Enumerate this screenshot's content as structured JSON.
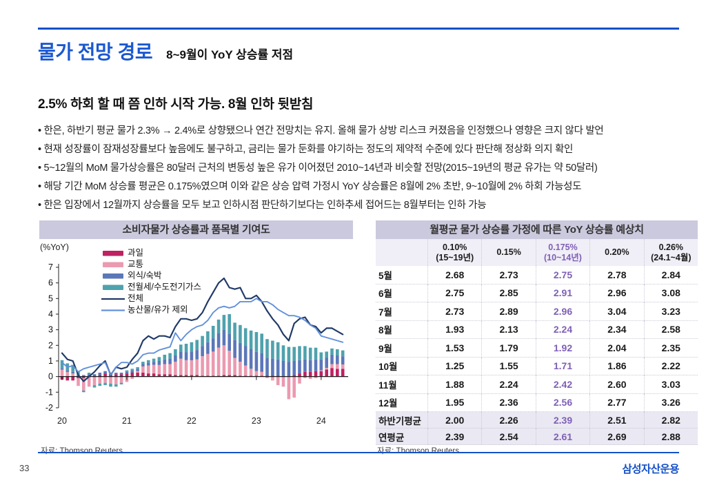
{
  "header": {
    "title": "물가 전망 경로",
    "subtitle": "8~9월이 YoY 상승률 저점"
  },
  "body": {
    "heading": "2.5% 하회 할 때 쯤 인하 시작 가능. 8월 인하 뒷받침",
    "bullets": [
      "한은, 하반기 평균 물가 2.3% → 2.4%로 상향됐으나 연간 전망치는 유지. 올해 물가 상방 리스크 커졌음을 인정했으나 영향은 크지 않다 발언",
      "현재 성장률이 잠재성장률보다 높음에도 불구하고, 금리는 물가 둔화를 야기하는 정도의 제약적 수준에 있다 판단해 정상화 의지 확인",
      "5~12월의 MoM 물가상승률은 80달러 근처의 변동성 높은 유가 이어졌던 2010~14년과 비슷할 전망(2015~19년의 평균 유가는 약 50달러)",
      "해당 기간 MoM 상승률 평균은 0.175%였으며 이와 같은 상승 압력 가정시 YoY 상승률은 8월에 2% 초반, 9~10월에 2% 하회 가능성도",
      "한은 입장에서 12월까지 상승률을 모두 보고 인하시점 판단하기보다는 인하추세 접어드는 8월부터는 인하 가능"
    ]
  },
  "chart": {
    "title": "소비자물가 상승률과 품목별 기여도",
    "unit_label": "(%YoY)",
    "source": "자료: Thomson Reuters"
  },
  "chart_data": {
    "type": "combo-stacked-bar-line",
    "x_monthly_start": "2020-01",
    "x_tick_labels": [
      "20",
      "21",
      "22",
      "23",
      "24"
    ],
    "ylim": [
      -2,
      7
    ],
    "y_ticks": [
      7,
      6,
      5,
      4,
      3,
      2,
      1,
      0,
      -1,
      -2
    ],
    "grid": false,
    "legend_position": "upper-left",
    "bar_series": [
      {
        "name": "과일",
        "color": "#bf2162",
        "values": [
          -0.2,
          -0.25,
          -0.25,
          -0.1,
          -0.1,
          0.05,
          0.05,
          0.1,
          0.2,
          0.15,
          0.15,
          0.15,
          0.2,
          0.25,
          0.25,
          0.25,
          0.2,
          0.2,
          0.15,
          0.15,
          0.15,
          0.1,
          0.1,
          0.1,
          0.1,
          0.1,
          0.05,
          0.05,
          0.05,
          0.05,
          0.1,
          0.1,
          0.1,
          0.05,
          0.05,
          0.05,
          0.05,
          0.05,
          0.05,
          0.05,
          0.05,
          0,
          0,
          0.1,
          0.2,
          0.3,
          0.3,
          0.35,
          0.35,
          0.45,
          0.55,
          0.5,
          0.5
        ]
      },
      {
        "name": "교통",
        "color": "#eb9ab0",
        "values": [
          0.45,
          0.3,
          0.2,
          -0.5,
          -0.8,
          -0.65,
          -0.55,
          -0.45,
          -0.4,
          -0.45,
          -0.5,
          -0.4,
          -0.35,
          -0.15,
          0.1,
          0.4,
          0.5,
          0.55,
          0.6,
          0.65,
          0.65,
          0.85,
          1.05,
          0.95,
          0.95,
          1.0,
          1.25,
          1.4,
          1.55,
          1.8,
          1.9,
          1.55,
          1.1,
          0.9,
          0.65,
          0.45,
          0.3,
          0.25,
          -0.1,
          -0.25,
          -0.55,
          -0.65,
          -1.45,
          -1.35,
          -0.45,
          -0.1,
          -0.15,
          -0.1,
          0.05,
          0.1,
          0.25,
          0.3,
          0.28
        ]
      },
      {
        "name": "외식/숙박",
        "color": "#5c77b9",
        "values": [
          0.1,
          0.1,
          0.1,
          0.1,
          0.1,
          0.1,
          0.1,
          0.15,
          0.15,
          0.1,
          0.1,
          0.1,
          0.1,
          0.15,
          0.15,
          0.15,
          0.2,
          0.2,
          0.25,
          0.3,
          0.35,
          0.4,
          0.45,
          0.5,
          0.55,
          0.6,
          0.65,
          0.75,
          0.85,
          0.95,
          1.0,
          1.1,
          1.15,
          1.2,
          1.25,
          1.25,
          1.25,
          1.2,
          1.15,
          1.1,
          1.05,
          1.0,
          0.95,
          0.9,
          0.85,
          0.8,
          0.75,
          0.75,
          0.7,
          0.65,
          0.6,
          0.55,
          0.52
        ]
      },
      {
        "name": "전월세/수도전기가스",
        "color": "#4fa2ad",
        "values": [
          0.5,
          0.45,
          0.45,
          0.2,
          -0.1,
          0.1,
          -0.15,
          -0.15,
          -0.15,
          -0.2,
          -0.15,
          -0.1,
          0.1,
          0.1,
          0.1,
          0.15,
          0.15,
          0.2,
          0.25,
          0.3,
          0.35,
          0.4,
          0.45,
          0.55,
          0.6,
          0.65,
          0.65,
          0.7,
          0.8,
          0.85,
          0.95,
          1.25,
          1.1,
          1.15,
          1.15,
          1.2,
          1.25,
          1.25,
          1.2,
          1.15,
          1.1,
          1.0,
          0.95,
          0.9,
          0.9,
          0.85,
          0.8,
          0.75,
          0.45,
          0.4,
          0.4,
          0.4,
          0.38
        ]
      }
    ],
    "line_series": [
      {
        "name": "전체",
        "color": "#203a68",
        "values": [
          1.5,
          1.1,
          1.0,
          0.1,
          -0.3,
          0.0,
          0.3,
          0.7,
          1.0,
          0.1,
          0.6,
          0.5,
          0.6,
          1.1,
          1.5,
          2.3,
          2.6,
          2.4,
          2.6,
          2.6,
          2.5,
          3.2,
          3.7,
          3.7,
          3.6,
          3.7,
          4.1,
          4.8,
          5.4,
          6.0,
          6.3,
          5.7,
          5.6,
          5.7,
          5.0,
          5.0,
          5.2,
          4.8,
          4.2,
          3.7,
          3.3,
          2.7,
          2.3,
          3.4,
          3.7,
          3.8,
          3.3,
          3.2,
          2.8,
          3.1,
          3.1,
          2.9,
          2.7
        ]
      },
      {
        "name": "농산물/유가 제외",
        "color": "#6290da",
        "values": [
          0.9,
          0.6,
          0.7,
          0.3,
          0.5,
          0.6,
          0.7,
          0.8,
          0.9,
          0.1,
          0.6,
          0.9,
          0.9,
          0.8,
          1.0,
          1.4,
          1.5,
          1.5,
          1.7,
          1.8,
          1.9,
          2.8,
          2.3,
          2.7,
          3.0,
          3.2,
          3.3,
          3.6,
          4.1,
          4.4,
          4.5,
          4.4,
          4.5,
          4.8,
          4.8,
          4.8,
          5.0,
          4.8,
          4.8,
          4.6,
          4.3,
          4.1,
          3.9,
          3.9,
          3.8,
          3.6,
          3.3,
          3.1,
          2.6,
          2.5,
          2.4,
          2.3,
          2.2
        ]
      }
    ]
  },
  "table": {
    "title": "월평균 물가 상승률 가정에 따른 YoY 상승률 예상치",
    "source": "자료: Thomson Reuters",
    "columns": [
      {
        "line1": "0.10%",
        "line2": "(15~19년)"
      },
      {
        "line1": "0.15%",
        "line2": ""
      },
      {
        "line1": "0.175%",
        "line2": "(10~14년)",
        "highlight": true
      },
      {
        "line1": "0.20%",
        "line2": ""
      },
      {
        "line1": "0.26%",
        "line2": "(24.1~4월)"
      }
    ],
    "rows": [
      {
        "label": "5월",
        "values": [
          "2.68",
          "2.73",
          "2.75",
          "2.78",
          "2.84"
        ]
      },
      {
        "label": "6월",
        "values": [
          "2.75",
          "2.85",
          "2.91",
          "2.96",
          "3.08"
        ]
      },
      {
        "label": "7월",
        "values": [
          "2.73",
          "2.89",
          "2.96",
          "3.04",
          "3.23"
        ]
      },
      {
        "label": "8월",
        "values": [
          "1.93",
          "2.13",
          "2.24",
          "2.34",
          "2.58"
        ]
      },
      {
        "label": "9월",
        "values": [
          "1.53",
          "1.79",
          "1.92",
          "2.04",
          "2.35"
        ]
      },
      {
        "label": "10월",
        "values": [
          "1.25",
          "1.55",
          "1.71",
          "1.86",
          "2.22"
        ]
      },
      {
        "label": "11월",
        "values": [
          "1.88",
          "2.24",
          "2.42",
          "2.60",
          "3.03"
        ]
      },
      {
        "label": "12월",
        "values": [
          "1.95",
          "2.36",
          "2.56",
          "2.77",
          "3.26"
        ]
      },
      {
        "label": "하반기평균",
        "values": [
          "2.00",
          "2.26",
          "2.39",
          "2.51",
          "2.82"
        ],
        "summary": true
      },
      {
        "label": "연평균",
        "values": [
          "2.39",
          "2.54",
          "2.61",
          "2.69",
          "2.88"
        ],
        "summary": true
      }
    ]
  },
  "footer": {
    "page_number": "33",
    "logo": "삼성자산운용"
  },
  "colors": {
    "accent_blue": "#1450c8",
    "title_blue": "#1b58d0",
    "panel_header_bg": "#cbc9dd",
    "table_header_bg": "#f0eef6",
    "summary_row_bg": "#eae8f2",
    "highlight_purple": "#7e5fb5"
  }
}
